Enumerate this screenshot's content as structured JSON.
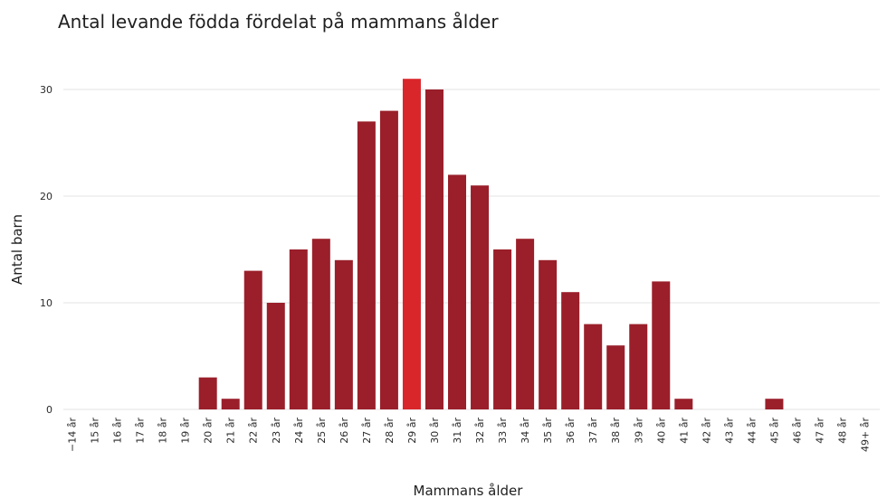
{
  "chart_data": {
    "type": "bar",
    "title": "Antal levande födda fördelat på mammans ålder",
    "xlabel": "Mammans ålder",
    "ylabel": "Antal barn",
    "categories": [
      "−14 år",
      "15 år",
      "16 år",
      "17 år",
      "18 år",
      "19 år",
      "20 år",
      "21 år",
      "22 år",
      "23 år",
      "24 år",
      "25 år",
      "26 år",
      "27 år",
      "28 år",
      "29 år",
      "30 år",
      "31 år",
      "32 år",
      "33 år",
      "34 år",
      "35 år",
      "36 år",
      "37 år",
      "38 år",
      "39 år",
      "40 år",
      "41 år",
      "42 år",
      "43 år",
      "44 år",
      "45 år",
      "46 år",
      "47 år",
      "48 år",
      "49+ år"
    ],
    "values": [
      0,
      0,
      0,
      0,
      0,
      0,
      3,
      1,
      13,
      10,
      15,
      16,
      14,
      27,
      28,
      31,
      30,
      22,
      21,
      15,
      16,
      14,
      11,
      8,
      6,
      8,
      12,
      1,
      0,
      0,
      0,
      1,
      0,
      0,
      0,
      0
    ],
    "highlight_category": "29 år",
    "ylim": [
      0,
      32
    ],
    "yticks": [
      0,
      10,
      20,
      30
    ],
    "grid": true,
    "colors": {
      "bar": "#9a1f2a",
      "highlight": "#d9262b",
      "grid": "#e3e3e3"
    }
  }
}
